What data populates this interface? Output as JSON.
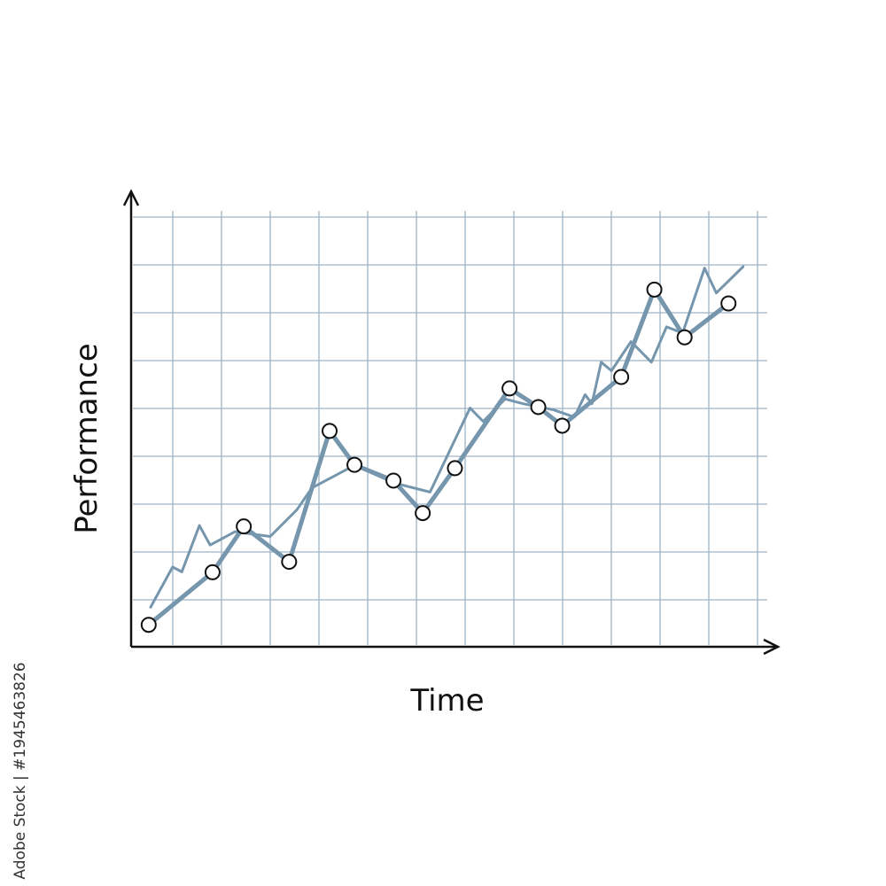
{
  "chart_data": {
    "type": "line",
    "xlabel": "Time",
    "ylabel": "Performance",
    "credit": "Adobe Stock | #1945463826",
    "xlim": [
      0,
      13.3
    ],
    "ylim": [
      0,
      9.5
    ],
    "grid": true,
    "series": [
      {
        "color": "#7596ad",
        "x": [
          0.36,
          1.67,
          2.31,
          3.24,
          4.07,
          4.58,
          5.38,
          5.98,
          6.64,
          7.76,
          8.35,
          8.84,
          10.05,
          10.73,
          11.35,
          12.25
        ],
        "values": [
          0.46,
          1.56,
          2.52,
          1.78,
          4.52,
          3.81,
          3.48,
          2.8,
          3.74,
          5.41,
          5.02,
          4.63,
          5.65,
          7.48,
          6.48,
          7.19
        ]
      },
      {
        "color": "#7596ad",
        "x": [
          0.4,
          0.85,
          1.04,
          1.4,
          1.62,
          2.13,
          2.85,
          3.4,
          3.71,
          4.58,
          5.4,
          6.13,
          6.95,
          7.22,
          7.67,
          8.04,
          8.67,
          9.09,
          9.31,
          9.45,
          9.64,
          9.85,
          10.25,
          10.67,
          10.98,
          11.31,
          11.76,
          12.0,
          12.55
        ],
        "values": [
          0.83,
          1.67,
          1.57,
          2.54,
          2.13,
          2.41,
          2.31,
          2.87,
          3.33,
          3.8,
          3.43,
          3.24,
          5.0,
          4.72,
          5.19,
          5.09,
          4.96,
          4.81,
          5.28,
          5.09,
          5.96,
          5.78,
          6.39,
          5.96,
          6.7,
          6.57,
          7.93,
          7.41,
          7.96
        ]
      }
    ]
  }
}
